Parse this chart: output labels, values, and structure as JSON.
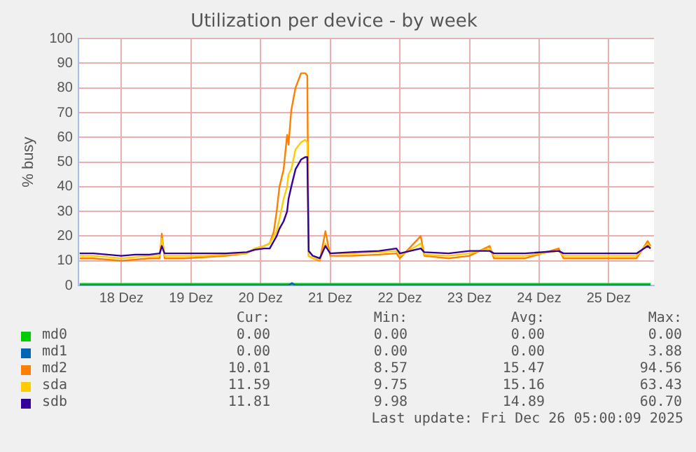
{
  "chart_data": {
    "type": "line",
    "title": "Utilization per device - by week",
    "ylabel": "% busy",
    "xlim": [
      17.88,
      26.15
    ],
    "xticks": [
      {
        "value": 18.5,
        "label": "18 Dez"
      },
      {
        "value": 19.5,
        "label": "19 Dez"
      },
      {
        "value": 20.5,
        "label": "20 Dez"
      },
      {
        "value": 21.5,
        "label": "21 Dez"
      },
      {
        "value": 22.5,
        "label": "22 Dez"
      },
      {
        "value": 23.5,
        "label": "23 Dez"
      },
      {
        "value": 24.5,
        "label": "24 Dez"
      },
      {
        "value": 25.5,
        "label": "25 Dez"
      }
    ],
    "ylim": [
      0,
      100
    ],
    "yticks": [
      0,
      10,
      20,
      30,
      40,
      50,
      60,
      70,
      80,
      90,
      100
    ],
    "grid": true,
    "legend": "bottom",
    "marker": "none",
    "line_style": "solid",
    "series": [
      {
        "name": "md0",
        "color": "#00cc00",
        "x": [
          17.9,
          26.1
        ],
        "values": [
          0,
          0
        ]
      },
      {
        "name": "md1",
        "color": "#0066b3",
        "x": [
          17.9,
          20.9,
          20.95,
          21.0,
          26.1
        ],
        "values": [
          0,
          0,
          1,
          0,
          0
        ]
      },
      {
        "name": "md2",
        "color": "#ff8000",
        "x": [
          17.9,
          18.1,
          18.3,
          18.5,
          18.7,
          18.9,
          19.05,
          19.08,
          19.12,
          19.4,
          19.7,
          20.0,
          20.3,
          20.42,
          20.55,
          20.63,
          20.69,
          20.73,
          20.77,
          20.83,
          20.88,
          20.9,
          20.94,
          21.0,
          21.08,
          21.14,
          21.17,
          21.19,
          21.25,
          21.35,
          21.43,
          21.5,
          21.8,
          22.2,
          22.45,
          22.5,
          22.8,
          22.85,
          23.2,
          23.5,
          23.79,
          23.85,
          24.3,
          24.78,
          24.85,
          25.4,
          25.9,
          26.06,
          26.1
        ],
        "values": [
          11,
          11,
          10.5,
          10,
          10.5,
          11,
          11,
          21,
          11,
          11,
          11.5,
          12,
          13,
          15,
          16,
          17,
          22,
          30,
          40,
          47,
          61,
          57,
          71,
          80,
          86,
          86,
          85,
          12,
          11,
          10,
          22,
          12,
          12,
          12.5,
          13,
          11,
          20,
          12,
          11,
          12,
          16,
          11,
          11,
          15,
          11,
          11,
          11,
          18,
          16
        ]
      },
      {
        "name": "sda",
        "color": "#ffcc00",
        "x": [
          17.9,
          18.1,
          18.3,
          18.5,
          18.7,
          18.9,
          19.05,
          19.08,
          19.12,
          19.4,
          19.7,
          20.0,
          20.3,
          20.42,
          20.55,
          20.63,
          20.69,
          20.73,
          20.77,
          20.83,
          20.88,
          20.9,
          20.94,
          21.0,
          21.08,
          21.14,
          21.17,
          21.19,
          21.25,
          21.35,
          21.43,
          21.5,
          21.8,
          22.2,
          22.45,
          22.5,
          22.8,
          22.85,
          23.2,
          23.5,
          23.79,
          23.85,
          24.3,
          24.78,
          24.85,
          25.4,
          25.9,
          26.06,
          26.1
        ],
        "values": [
          12,
          12,
          11.5,
          11,
          11.5,
          12,
          12,
          19,
          12,
          12,
          12,
          12.5,
          13,
          15,
          16,
          17,
          20,
          22,
          27,
          35,
          40,
          45,
          47,
          55,
          58,
          59,
          58,
          12,
          11,
          10.5,
          17,
          13,
          13,
          13.5,
          14,
          12,
          17,
          12.5,
          12,
          13,
          15,
          12,
          12,
          14,
          12,
          12,
          12,
          17,
          15
        ]
      },
      {
        "name": "sdb",
        "color": "#330099",
        "x": [
          17.9,
          18.1,
          18.3,
          18.5,
          18.7,
          18.9,
          19.05,
          19.08,
          19.12,
          19.4,
          19.7,
          20.0,
          20.3,
          20.42,
          20.55,
          20.63,
          20.69,
          20.73,
          20.77,
          20.83,
          20.88,
          20.9,
          20.94,
          21.0,
          21.08,
          21.14,
          21.17,
          21.19,
          21.25,
          21.35,
          21.43,
          21.5,
          21.8,
          22.2,
          22.45,
          22.5,
          22.8,
          22.85,
          23.2,
          23.5,
          23.79,
          23.85,
          24.3,
          24.78,
          24.85,
          25.4,
          25.9,
          26.06,
          26.1
        ],
        "values": [
          13,
          13,
          12.5,
          12,
          12.5,
          12.5,
          13,
          16,
          13,
          13,
          13,
          13,
          13.5,
          14.5,
          15,
          15,
          18,
          20,
          23,
          26,
          30,
          35,
          40,
          47,
          51,
          52,
          52,
          14,
          12,
          11,
          16,
          13,
          13.5,
          14,
          15,
          13,
          15,
          13.5,
          13,
          14,
          14,
          13,
          13,
          14,
          13,
          13,
          13,
          16,
          15
        ]
      }
    ],
    "annotations": [
      "Cur:",
      "Min:",
      "Avg:",
      "Max:",
      "0.00",
      "0.00",
      "0.00",
      "0.00",
      "0.00",
      "0.00",
      "0.00",
      "3.88",
      "10.01",
      "8.57",
      "15.47",
      "94.56",
      "11.59",
      "9.75",
      "15.16",
      "63.43",
      "11.81",
      "9.98",
      "14.89",
      "60.70",
      "Last update: Fri Dec 26 05:00:09 2025"
    ]
  }
}
